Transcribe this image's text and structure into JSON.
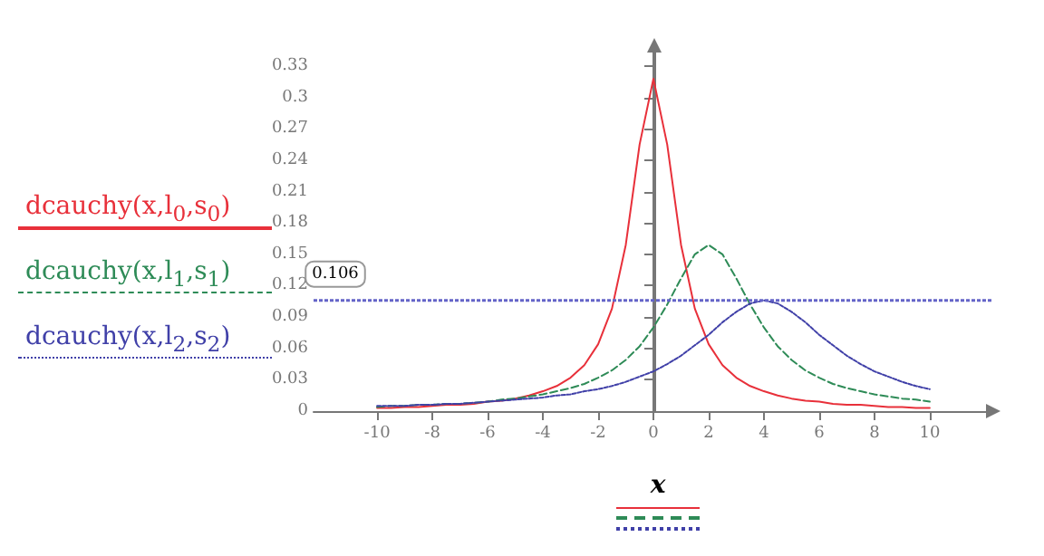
{
  "chart_data": {
    "type": "line",
    "xlabel": "x",
    "legend": "left",
    "x": [
      -10,
      -9.5,
      -9,
      -8.5,
      -8,
      -7.5,
      -7,
      -6.5,
      -6,
      -5.5,
      -5,
      -4.5,
      -4,
      -3.5,
      -3,
      -2.5,
      -2,
      -1.5,
      -1,
      -0.5,
      0,
      0.5,
      1,
      1.5,
      2,
      2.5,
      3,
      3.5,
      4,
      4.5,
      5,
      5.5,
      6,
      6.5,
      7,
      7.5,
      8,
      8.5,
      9,
      9.5,
      10
    ],
    "xlim": [
      -12.3,
      12.3
    ],
    "xticks": [
      -10,
      -8,
      -6,
      -4,
      -2,
      0,
      2,
      4,
      6,
      8,
      10
    ],
    "ylim": [
      0,
      0.35
    ],
    "yticks": [
      0,
      0.03,
      0.06,
      0.09,
      0.12,
      0.15,
      0.18,
      0.21,
      0.24,
      0.27,
      0.3,
      0.33
    ],
    "series": [
      {
        "name": "dcauchy(x,l$_{0}$,s$_{0}$)",
        "color": "#e8303a",
        "line_style": "solid",
        "values": [
          0.003,
          0.003,
          0.004,
          0.004,
          0.005,
          0.006,
          0.006,
          0.007,
          0.009,
          0.01,
          0.012,
          0.015,
          0.019,
          0.024,
          0.032,
          0.044,
          0.064,
          0.098,
          0.159,
          0.255,
          0.318,
          0.255,
          0.159,
          0.098,
          0.064,
          0.044,
          0.032,
          0.024,
          0.019,
          0.015,
          0.012,
          0.01,
          0.009,
          0.007,
          0.006,
          0.006,
          0.005,
          0.004,
          0.004,
          0.003,
          0.003
        ]
      },
      {
        "name": "dcauchy(x,l$_{1}$,s$_{1}$)",
        "color": "#2e8b57",
        "line_style": "dashed",
        "values": [
          0.004,
          0.005,
          0.005,
          0.006,
          0.006,
          0.007,
          0.007,
          0.008,
          0.009,
          0.011,
          0.012,
          0.014,
          0.016,
          0.019,
          0.022,
          0.026,
          0.032,
          0.039,
          0.049,
          0.062,
          0.08,
          0.102,
          0.127,
          0.15,
          0.159,
          0.15,
          0.127,
          0.102,
          0.08,
          0.062,
          0.049,
          0.039,
          0.032,
          0.026,
          0.022,
          0.019,
          0.016,
          0.014,
          0.012,
          0.011,
          0.009
        ]
      },
      {
        "name": "dcauchy(x,l$_{2}$,s$_{2}$)",
        "color": "#4040a8",
        "line_style": "dotted",
        "values": [
          0.005,
          0.005,
          0.005,
          0.006,
          0.006,
          0.007,
          0.007,
          0.008,
          0.009,
          0.01,
          0.011,
          0.012,
          0.013,
          0.015,
          0.016,
          0.019,
          0.021,
          0.024,
          0.028,
          0.033,
          0.038,
          0.045,
          0.053,
          0.063,
          0.073,
          0.085,
          0.095,
          0.103,
          0.106,
          0.103,
          0.095,
          0.085,
          0.073,
          0.063,
          0.053,
          0.045,
          0.038,
          0.033,
          0.028,
          0.024,
          0.021
        ]
      }
    ],
    "ref_lines": [
      {
        "axis": "y",
        "value": 0.106,
        "label": "0.106",
        "color": "#6464c8",
        "line_style": "dotted"
      }
    ]
  }
}
